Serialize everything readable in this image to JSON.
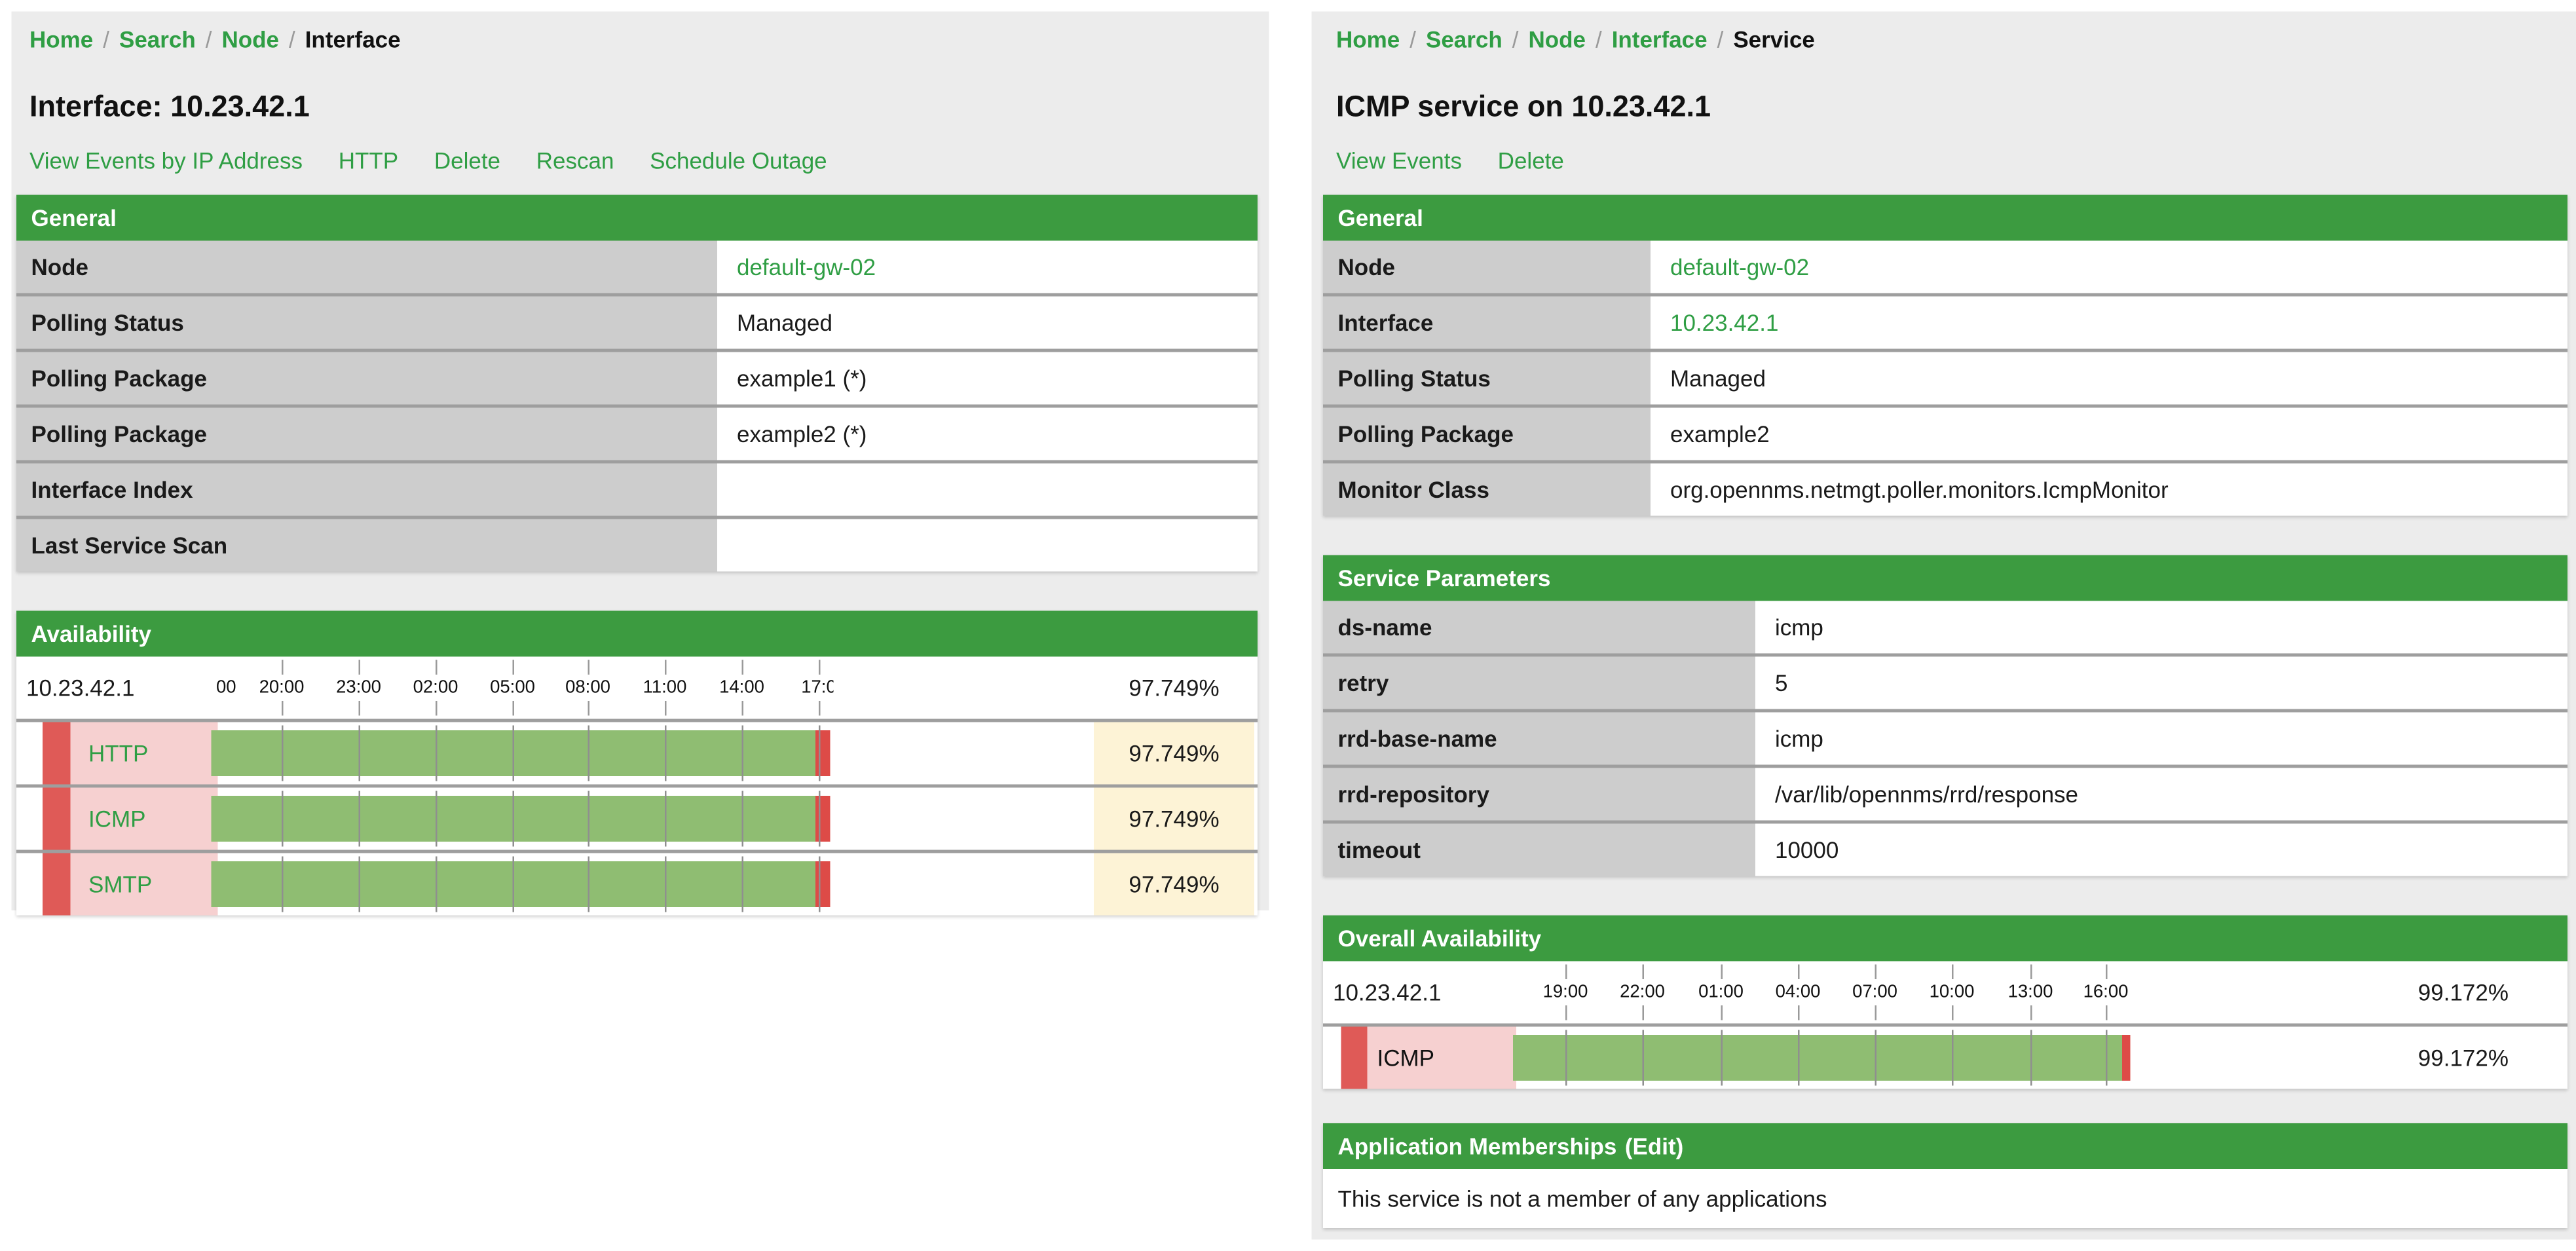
{
  "colors": {
    "header_green": "#3c9b40",
    "link_green": "#2f9e44",
    "label_cell_gray": "#cdcdcd",
    "row_divider_gray": "#9e9e9e",
    "page_background": "#ececec",
    "bar_green": "#8fbd72",
    "outage_red": "#dd4b47",
    "status_strip_red": "#df5a57",
    "service_label_pink": "#f6d0d0",
    "percent_cell_yellow": "#fdf3d6"
  },
  "left_page": {
    "breadcrumb": {
      "separator": "/",
      "links": [
        "Home",
        "Search",
        "Node"
      ],
      "current": "Interface"
    },
    "title": "Interface: 10.23.42.1",
    "actions": [
      "View Events by IP Address",
      "HTTP",
      "Delete",
      "Rescan",
      "Schedule Outage"
    ],
    "general": {
      "header": "General",
      "rows": [
        {
          "label": "Node",
          "value": "default-gw-02"
        },
        {
          "label": "Polling Status",
          "value": "Managed"
        },
        {
          "label": "Polling Package",
          "value": "example1 (*)"
        },
        {
          "label": "Polling Package",
          "value": "example2 (*)"
        },
        {
          "label": "Interface Index",
          "value": ""
        },
        {
          "label": "Last Service Scan",
          "value": ""
        }
      ]
    },
    "availability": {
      "header": "Availability",
      "ip": "10.23.42.1",
      "total": "97.749%",
      "axis_labels": [
        "00",
        "20:00",
        "23:00",
        "02:00",
        "05:00",
        "08:00",
        "11:00",
        "14:00",
        "17:0"
      ],
      "services": [
        {
          "name": "HTTP",
          "value": "97.749%",
          "availability_pct": 97.749
        },
        {
          "name": "ICMP",
          "value": "97.749%",
          "availability_pct": 97.749
        },
        {
          "name": "SMTP",
          "value": "97.749%",
          "availability_pct": 97.749
        }
      ]
    }
  },
  "right_page": {
    "breadcrumb": {
      "separator": "/",
      "links": [
        "Home",
        "Search",
        "Node",
        "Interface"
      ],
      "current": "Service"
    },
    "title": "ICMP service on 10.23.42.1",
    "actions": [
      "View Events",
      "Delete"
    ],
    "general": {
      "header": "General",
      "rows": [
        {
          "label": "Node",
          "value": "default-gw-02"
        },
        {
          "label": "Interface",
          "value": "10.23.42.1"
        },
        {
          "label": "Polling Status",
          "value": "Managed"
        },
        {
          "label": "Polling Package",
          "value": "example2"
        },
        {
          "label": "Monitor Class",
          "value": "org.opennms.netmgt.poller.monitors.IcmpMonitor"
        }
      ]
    },
    "service_parameters": {
      "header": "Service Parameters",
      "rows": [
        {
          "label": "ds-name",
          "value": "icmp"
        },
        {
          "label": "retry",
          "value": "5"
        },
        {
          "label": "rrd-base-name",
          "value": "icmp"
        },
        {
          "label": "rrd-repository",
          "value": "/var/lib/opennms/rrd/response"
        },
        {
          "label": "timeout",
          "value": "10000"
        }
      ]
    },
    "overall_availability": {
      "header": "Overall Availability",
      "ip": "10.23.42.1",
      "total": "99.172%",
      "axis_labels": [
        "19:00",
        "22:00",
        "01:00",
        "04:00",
        "07:00",
        "10:00",
        "13:00",
        "16:00"
      ],
      "services": [
        {
          "name": "ICMP",
          "value": "99.172%",
          "availability_pct": 99.172
        }
      ]
    },
    "applications": {
      "header": "Application Memberships",
      "edit_link": "(Edit)",
      "empty_text": "This service is not a member of any applications"
    }
  }
}
